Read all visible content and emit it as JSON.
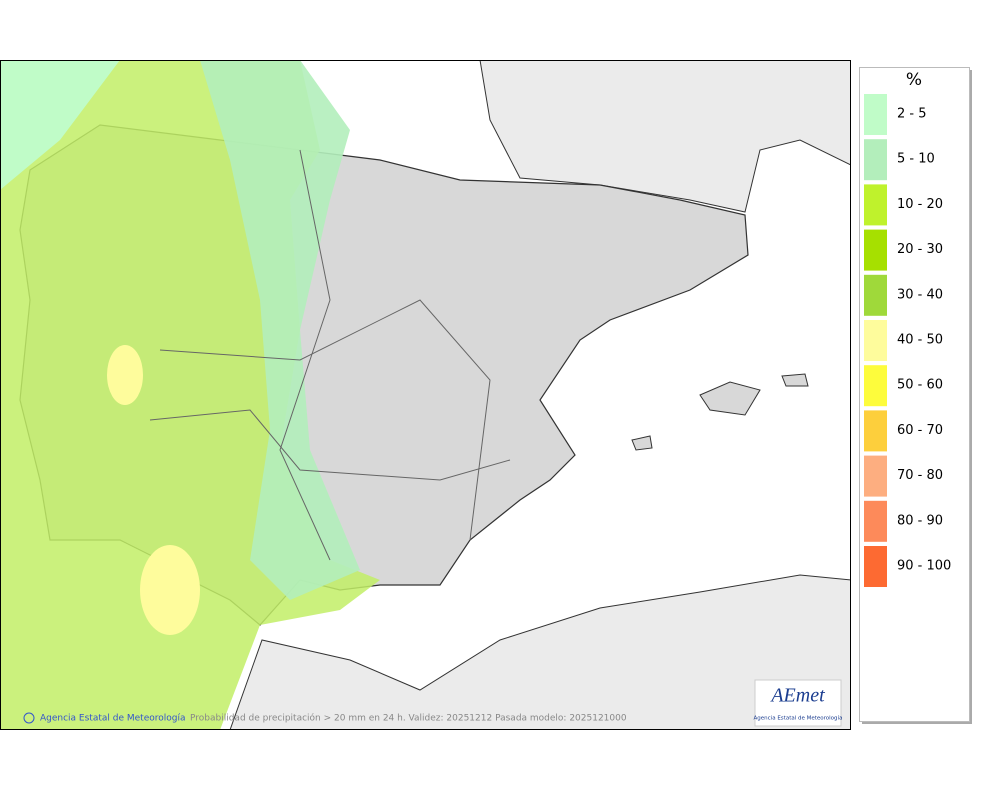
{
  "legend": {
    "title": "%",
    "items": [
      {
        "label": "2 - 5",
        "color": "#c0fcc8"
      },
      {
        "label": "5 - 10",
        "color": "#b3eebb"
      },
      {
        "label": "10 - 20",
        "color": "#bff22c"
      },
      {
        "label": "20 - 30",
        "color": "#a6e000"
      },
      {
        "label": "30 - 40",
        "color": "#9fd93a"
      },
      {
        "label": "40 - 50",
        "color": "#fefc9c"
      },
      {
        "label": "50 - 60",
        "color": "#fdfc3c"
      },
      {
        "label": "60 - 70",
        "color": "#fdcf3c"
      },
      {
        "label": "70 - 80",
        "color": "#fdae80"
      },
      {
        "label": "80 - 90",
        "color": "#fd8a5a"
      },
      {
        "label": "90 - 100",
        "color": "#fd6a32"
      }
    ]
  },
  "footer": {
    "credit": "Agencia Estatal de Meteorología",
    "caption": "Probabilidad de precipitación > 20 mm en 24 h. Validez: 20251212 Pasada modelo: 2025121000"
  },
  "logo": {
    "mark": "AEmet",
    "name": "Agencia Estatal de Meteorología"
  }
}
